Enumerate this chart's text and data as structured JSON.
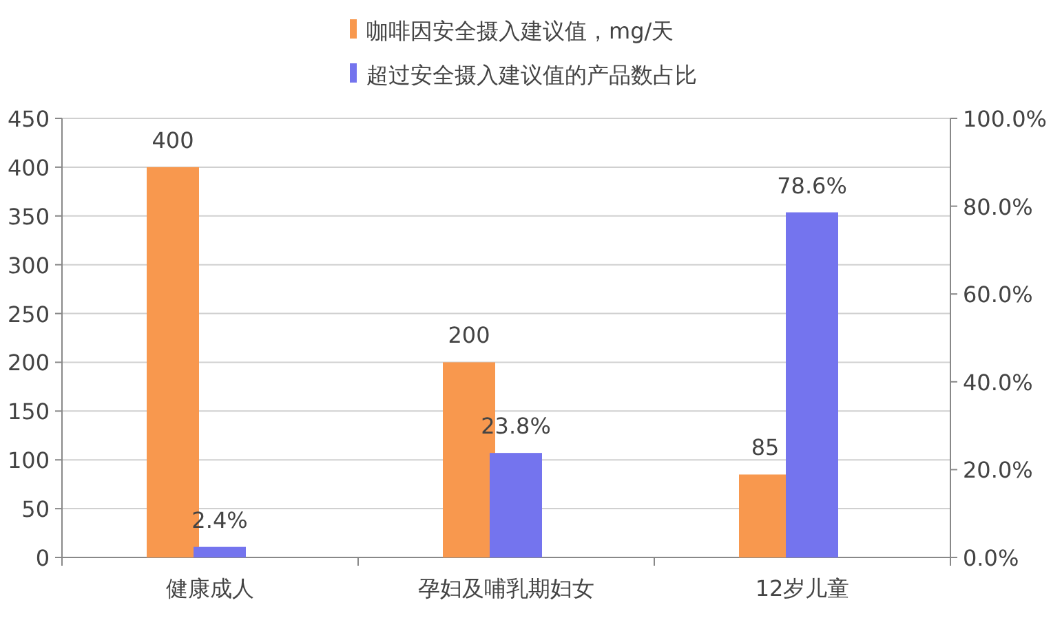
{
  "chart_data": {
    "type": "bar",
    "categories": [
      "健康成人",
      "孕妇及哺乳期妇女",
      "12岁儿童"
    ],
    "series": [
      {
        "name": "咖啡因安全摄入建议值，mg/天",
        "color": "#f8984e",
        "values": [
          400,
          200,
          85
        ],
        "value_labels": [
          "400",
          "200",
          "85"
        ]
      },
      {
        "name": "超过安全摄入建议值的产品数占比",
        "color": "#7474ee",
        "values": [
          2.4,
          23.8,
          78.6
        ],
        "value_labels": [
          "2.4%",
          "23.8%",
          "78.6%"
        ],
        "axis": "y2"
      }
    ],
    "ylim": [
      0,
      450
    ],
    "yticks": [
      0,
      50,
      100,
      150,
      200,
      250,
      300,
      350,
      400,
      450
    ],
    "y2lim": [
      0,
      100
    ],
    "y2ticks": [
      {
        "value": 0,
        "label": "0.0%"
      },
      {
        "value": 20,
        "label": "20.0%"
      },
      {
        "value": 40,
        "label": "40.0%"
      },
      {
        "value": 60,
        "label": "60.0%"
      },
      {
        "value": 80,
        "label": "80.0%"
      },
      {
        "value": 100,
        "label": "100.0%"
      }
    ],
    "grid": "y",
    "legend": "top"
  }
}
